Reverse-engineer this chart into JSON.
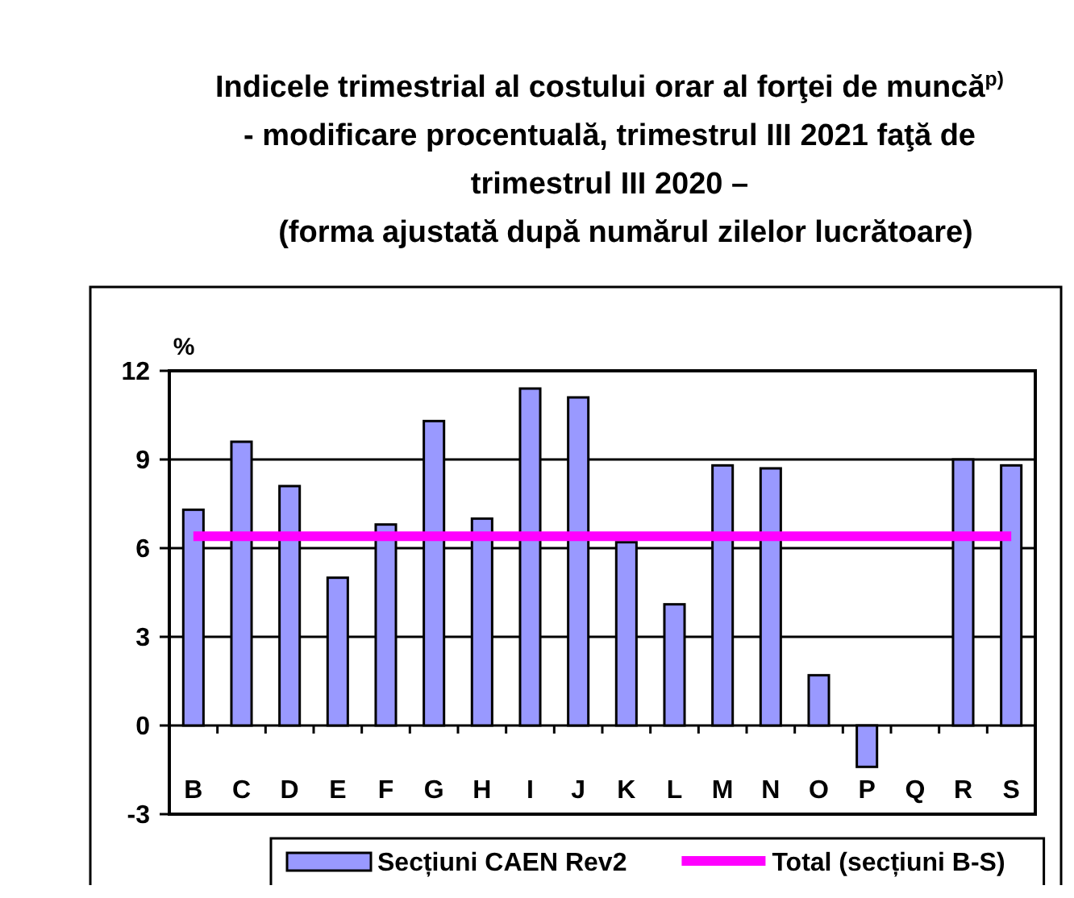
{
  "chart_data": {
    "type": "bar",
    "title": "Indicele trimestrial al costului orar al forţei de muncă$^{p)}$ - modificare procentuală, trimestrul III 2021 faţă de trimestrul III 2020 –",
    "subtitle": "(forma ajustată după numărul zilelor lucrătoare)",
    "ylabel": "%",
    "categories": [
      "B",
      "C",
      "D",
      "E",
      "F",
      "G",
      "H",
      "I",
      "J",
      "K",
      "L",
      "M",
      "N",
      "O",
      "P",
      "Q",
      "R",
      "S"
    ],
    "series": [
      {
        "name": "Secțiuni CAEN Rev2",
        "color": "#9999ff",
        "values": [
          7.3,
          9.6,
          8.1,
          5.0,
          6.8,
          10.3,
          7.0,
          11.4,
          11.1,
          6.2,
          4.1,
          8.8,
          8.7,
          1.7,
          -1.4,
          null,
          9.0,
          8.8
        ]
      },
      {
        "name": "Total (secțiuni B-S)",
        "type": "line",
        "color": "#ff00ff",
        "values": [
          6.4,
          6.4,
          6.4,
          6.4,
          6.4,
          6.4,
          6.4,
          6.4,
          6.4,
          6.4,
          6.4,
          6.4,
          6.4,
          6.4,
          6.4,
          6.4,
          6.4,
          6.4
        ]
      }
    ],
    "ylim": [
      -3,
      12
    ],
    "yticks": [
      -3,
      0,
      3,
      6,
      9,
      12
    ],
    "grid": "y",
    "legend": "bottom"
  }
}
